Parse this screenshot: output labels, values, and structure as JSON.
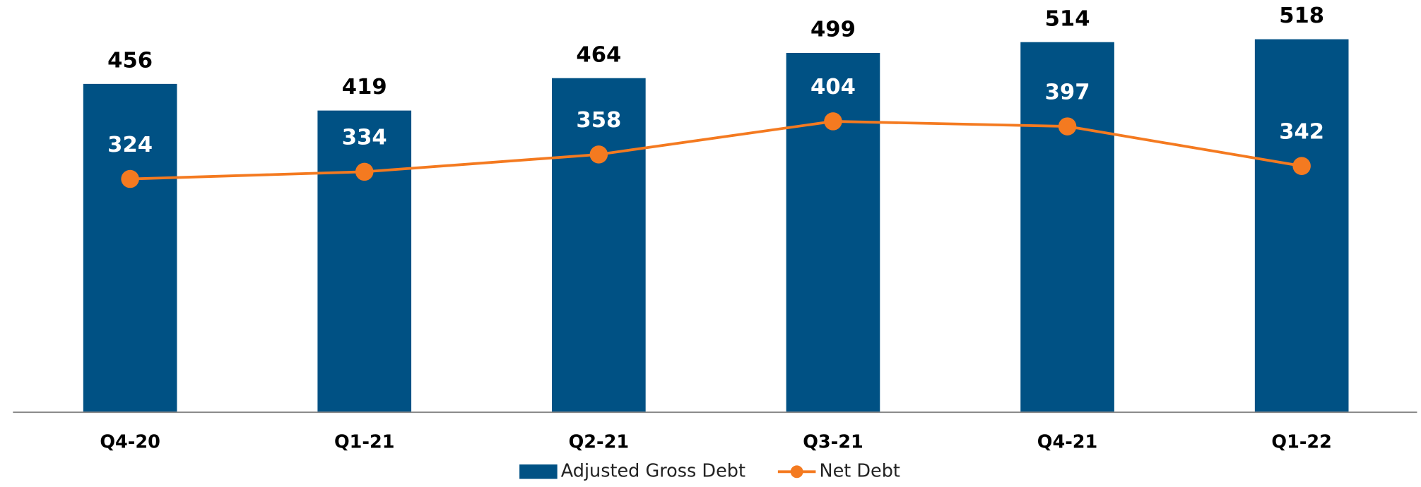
{
  "chart_data": {
    "type": "bar",
    "categories": [
      "Q4-20",
      "Q1-21",
      "Q2-21",
      "Q3-21",
      "Q4-21",
      "Q1-22"
    ],
    "series": [
      {
        "name": "Adjusted Gross Debt",
        "type": "bar",
        "color": "#005184",
        "values": [
          456,
          419,
          464,
          499,
          514,
          518
        ]
      },
      {
        "name": "Net Debt",
        "type": "line",
        "color": "#f47a20",
        "values": [
          324,
          334,
          358,
          404,
          397,
          342
        ]
      }
    ],
    "ylim": [
      0,
      572.5
    ],
    "legend": "bottom"
  }
}
